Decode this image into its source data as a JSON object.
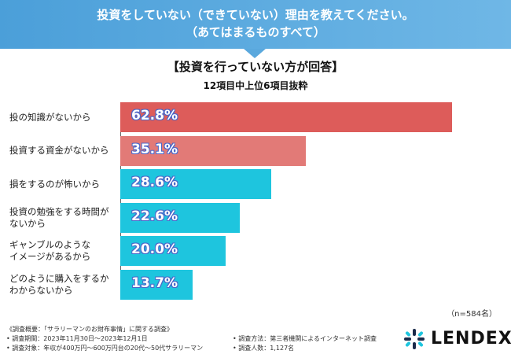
{
  "header": {
    "question_line1": "投資をしていない（できていない）理由を教えてください。",
    "question_line2": "（あてはまるものすべて）"
  },
  "title": "【投資を行っていない方が回答】",
  "subtitle": "12項目中上位6項目抜粋",
  "sample_size": "（n=584名）",
  "colors": {
    "header": "#5aa8dd",
    "top_bar": "#dd5c5a",
    "second_bar": "#e27a77",
    "other_bars": "#1ec5de",
    "bar_text_outline": "#4a67c9"
  },
  "chart_data": {
    "type": "bar",
    "orientation": "horizontal",
    "categories": [
      "投の知識がないから",
      "投資する資金がないから",
      "損をするのが怖いから",
      "投資の勉強をする時間がないから",
      "ギャンブルのようなイメージがあるから",
      "どのように購入をするかわからないから"
    ],
    "category_lines": [
      [
        "投の知識がないから"
      ],
      [
        "投資する資金がないから"
      ],
      [
        "損をするのが怖いから"
      ],
      [
        "投資の勉強をする時間が",
        "ないから"
      ],
      [
        "ギャンブルのような",
        "イメージがあるから"
      ],
      [
        "どのように購入をするか",
        "わからないから"
      ]
    ],
    "values": [
      62.8,
      35.1,
      28.6,
      22.6,
      20.0,
      13.7
    ],
    "value_labels": [
      "62.8%",
      "35.1%",
      "28.6%",
      "22.6%",
      "20.0%",
      "13.7%"
    ],
    "unit": "%",
    "xlim": [
      0,
      62.8
    ]
  },
  "footer": {
    "overview": "《調査概要：「サラリーマンのお財布事情」に関する調査》",
    "period": "• 調査期間：2023年11月30日〜2023年12月1日",
    "target": "• 調査対象：年収が400万円〜600万円台の20代〜50代サラリーマン",
    "method": "• 調査方法：第三者機関によるインターネット調査",
    "count": "• 調査人数：1,127名"
  },
  "logo": {
    "text": "LENDEX",
    "icon": "lendex-logo-icon"
  }
}
